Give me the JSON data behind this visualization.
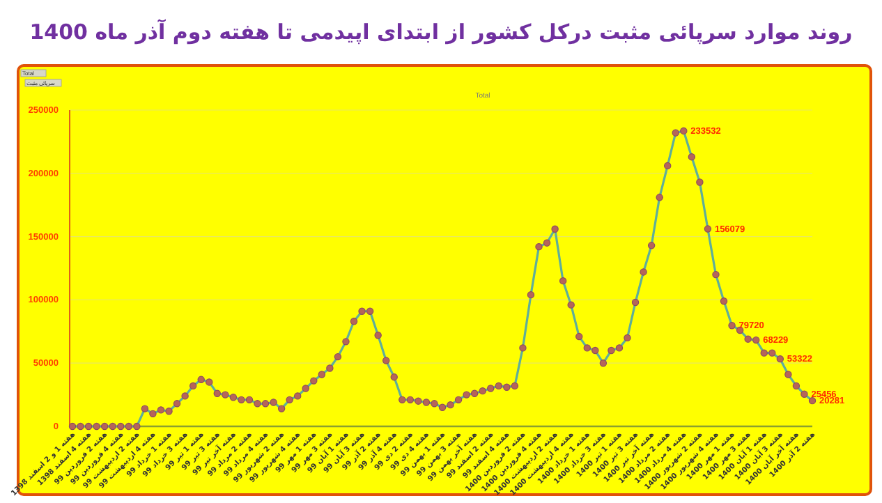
{
  "chart_data": {
    "type": "line",
    "title": "روند موارد سرپائی مثبت  درکل کشور از ابتدای اپیدمی تا هفته دوم آذر ماه 1400",
    "subtitle": "Total",
    "annotations": [
      "Total",
      "سرپائی مثبت"
    ],
    "categories": [
      "هفته 1 و 2 اسفند 1398",
      null,
      "هفته 4 اسفند 1398",
      null,
      "هفته 2 فروردین 99",
      null,
      "هفته 4 فروردین 99",
      null,
      "هفته 2 اردیبهشت 99",
      null,
      "هفته 4 اردیبهشت 99",
      null,
      "هفته 1 خرداد 99",
      null,
      "هفته 3 خرداد 99",
      null,
      "هفته 1 تیر 99",
      null,
      "هفته 3 تیر 99",
      null,
      "هفته آخر تیر 99",
      null,
      "هفته 2 مرداد 99",
      null,
      "هفته 4 مرداد 99",
      null,
      "هفته 2 شهریور 99",
      null,
      "هفته 4 شهریور 99",
      null,
      "هفته 1 مهر 99",
      null,
      "هفته 3 مهر 99",
      null,
      "هفته 1 آبان 99",
      null,
      "هفته 3 آبان 99",
      null,
      "هفته 2 آذر 99",
      null,
      "هفته 4 آذر 99",
      null,
      "هفته 2 دی 99",
      null,
      "هفته 4 دی 99",
      null,
      "هفته 1 بهمن 99",
      null,
      "هفته 3 بهمن 99",
      null,
      "هفته آخر بهمن 99",
      null,
      "هفته 2 اسفند 99",
      null,
      "هفته 4 اسفند 99",
      null,
      "هفته 2 فروردین 1400",
      null,
      "هفته 4 فروردین 1400",
      null,
      "هفته 2 اردیبهشت 1400",
      null,
      "هفته 4 اردیبهشت 1400",
      null,
      "هفته 1 خرداد 1400",
      null,
      "هفته 3 خرداد 1400",
      null,
      "هفته 1 تیر 1400",
      null,
      "هفته 3 تیر 1400",
      null,
      "هفته آخر تیر 1400",
      null,
      "هفته 2 مرداد 1400",
      null,
      "هفته 4 مرداد 1400",
      null,
      "هفته 2 شهریور 1400",
      null,
      "هفته 4 شهریور 1400",
      null,
      "هفته 1 مهر 1400",
      null,
      "هفته 3 مهر 1400",
      null,
      "هفته 1 آبان 1400",
      null,
      "هفته 3 آبان 1400",
      null,
      "هفته آخر آبان 1400",
      null,
      "هفته 2 آذر 1400"
    ],
    "series": [
      {
        "color": "#5fae9a",
        "values": [
          0,
          0,
          0,
          0,
          0,
          0,
          0,
          0,
          0,
          14000,
          10000,
          13000,
          12000,
          18000,
          24000,
          32000,
          37000,
          35000,
          26000,
          25000,
          23000,
          21000,
          21000,
          18000,
          18000,
          19000,
          14000,
          21000,
          24000,
          30000,
          36000,
          41000,
          46000,
          55000,
          67000,
          83000,
          91000,
          91000,
          72000,
          52000,
          39000,
          21000,
          21000,
          20000,
          19000,
          18000,
          15000,
          17000,
          21000,
          25000,
          26000,
          28000,
          30000,
          32000,
          31000,
          32000,
          62000,
          104000,
          142000,
          145000,
          156000,
          115000,
          96000,
          71000,
          62000,
          60000,
          50000,
          60000,
          62000,
          70000,
          98000,
          122000,
          143000,
          181000,
          206000,
          232000,
          233532,
          213000,
          193000,
          156079,
          120000,
          99000,
          79720,
          76000,
          69000,
          68229,
          58000,
          58000,
          53322,
          41000,
          32000,
          25456,
          20281
        ],
        "value_labels": [
          null,
          null,
          null,
          null,
          null,
          null,
          null,
          null,
          null,
          null,
          null,
          null,
          null,
          null,
          null,
          null,
          null,
          null,
          null,
          null,
          null,
          null,
          null,
          null,
          null,
          null,
          null,
          null,
          null,
          null,
          null,
          null,
          null,
          null,
          null,
          null,
          null,
          null,
          null,
          null,
          null,
          null,
          null,
          null,
          null,
          null,
          null,
          null,
          null,
          null,
          null,
          null,
          null,
          null,
          null,
          null,
          null,
          null,
          null,
          null,
          null,
          null,
          null,
          null,
          null,
          null,
          null,
          null,
          null,
          null,
          null,
          null,
          null,
          null,
          null,
          null,
          "233532",
          null,
          null,
          "156079",
          null,
          null,
          "79720",
          null,
          null,
          "68229",
          null,
          null,
          "53322",
          null,
          null,
          "25456",
          "20281"
        ]
      }
    ],
    "marker": "circle",
    "ylim": [
      0,
      250000
    ],
    "yticks": [
      0,
      50000,
      100000,
      150000,
      200000,
      250000
    ],
    "grid": "y"
  }
}
